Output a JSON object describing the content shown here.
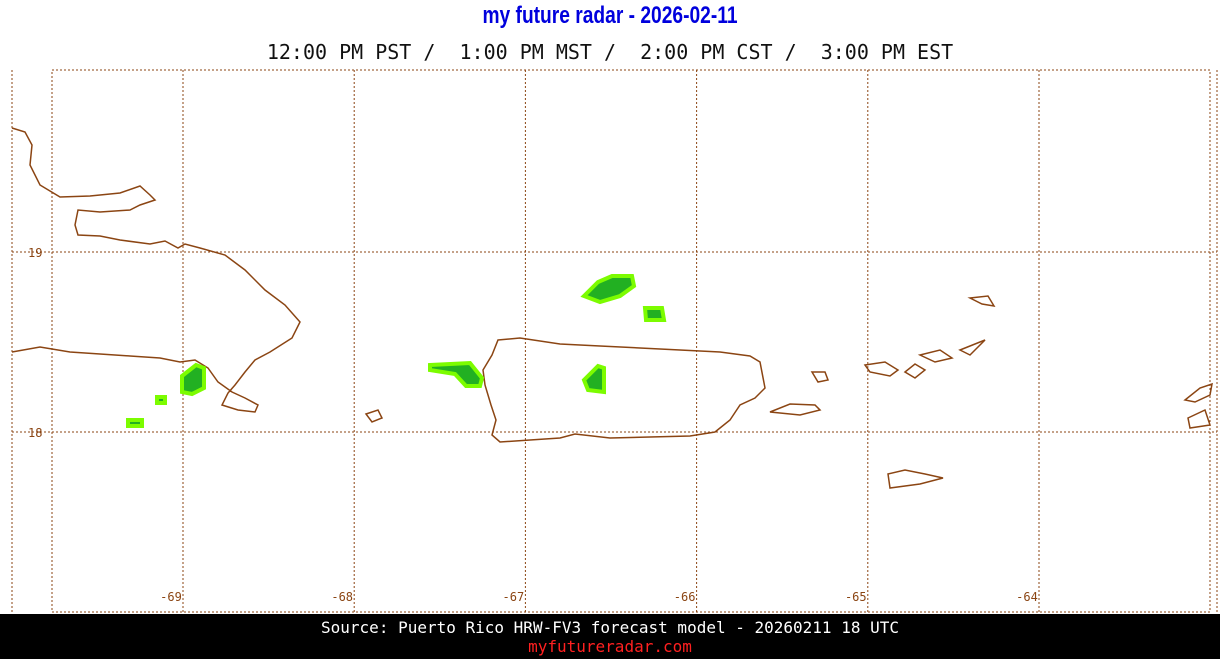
{
  "header": {
    "title": "my future radar - 2026-02-11",
    "subtitle": "12:00 PM PST /  1:00 PM MST /  2:00 PM CST /  3:00 PM EST"
  },
  "map": {
    "lat_labels": [
      "19",
      "18"
    ],
    "lon_labels": [
      "-69",
      "-68",
      "-67",
      "-66",
      "-65",
      "-64"
    ]
  },
  "footer": {
    "source": "Source: Puerto Rico HRW-FV3 forecast model - 20260211 18 UTC",
    "site": "myfutureradar.com"
  }
}
